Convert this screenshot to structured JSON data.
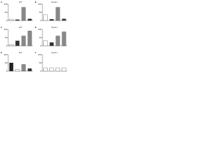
{
  "chart_data": [
    {
      "type": "bar",
      "panel": "A",
      "title": "WT",
      "categories": [
        null,
        null,
        null,
        null
      ],
      "values": [
        8,
        5,
        80,
        10
      ],
      "colors": [
        "#ffffff",
        "#333333",
        "#888888",
        "#333333"
      ],
      "ylim": [
        0,
        100
      ],
      "yticks": [
        0,
        50,
        100
      ]
    },
    {
      "type": "bar",
      "panel": "B",
      "title": "Nox2-/-",
      "categories": [
        null,
        null,
        null,
        null
      ],
      "values": [
        35,
        8,
        80,
        10
      ],
      "colors": [
        "#ffffff",
        "#333333",
        "#888888",
        "#333333"
      ],
      "ylim": [
        0,
        100
      ],
      "yticks": [
        0,
        50,
        100
      ]
    },
    {
      "type": "bar",
      "panel": "C",
      "title": "WT",
      "categories": [
        null,
        null,
        null,
        null
      ],
      "values": [
        8,
        30,
        60,
        90
      ],
      "colors": [
        "#ffffff",
        "#333333",
        "#888888",
        "#888888"
      ],
      "ylim": [
        0,
        100
      ],
      "yticks": [
        0,
        50,
        100
      ]
    },
    {
      "type": "bar",
      "panel": "D",
      "title": "Nox2-/-",
      "categories": [
        null,
        null,
        null,
        null
      ],
      "values": [
        30,
        20,
        60,
        85
      ],
      "colors": [
        "#ffffff",
        "#333333",
        "#888888",
        "#888888"
      ],
      "ylim": [
        0,
        100
      ],
      "yticks": [
        0,
        50,
        100
      ]
    },
    {
      "type": "bar",
      "panel": "E",
      "title": "WT",
      "categories": [
        null,
        null,
        null,
        null
      ],
      "values": [
        50,
        10,
        40,
        15
      ],
      "colors": [
        "#222222",
        "#ffffff",
        "#888888",
        "#333333"
      ],
      "ylim": [
        0,
        100
      ],
      "yticks": [
        0,
        50,
        100
      ]
    },
    {
      "type": "bar",
      "panel": "F",
      "title": "Nox2-/-",
      "categories": [
        null,
        null,
        null,
        null
      ],
      "values": [
        20,
        20,
        20,
        20
      ],
      "colors": [
        "#ffffff",
        "#ffffff",
        "#ffffff",
        "#ffffff"
      ],
      "ylim": [
        0,
        100
      ],
      "yticks": [
        0,
        50,
        100
      ]
    }
  ]
}
